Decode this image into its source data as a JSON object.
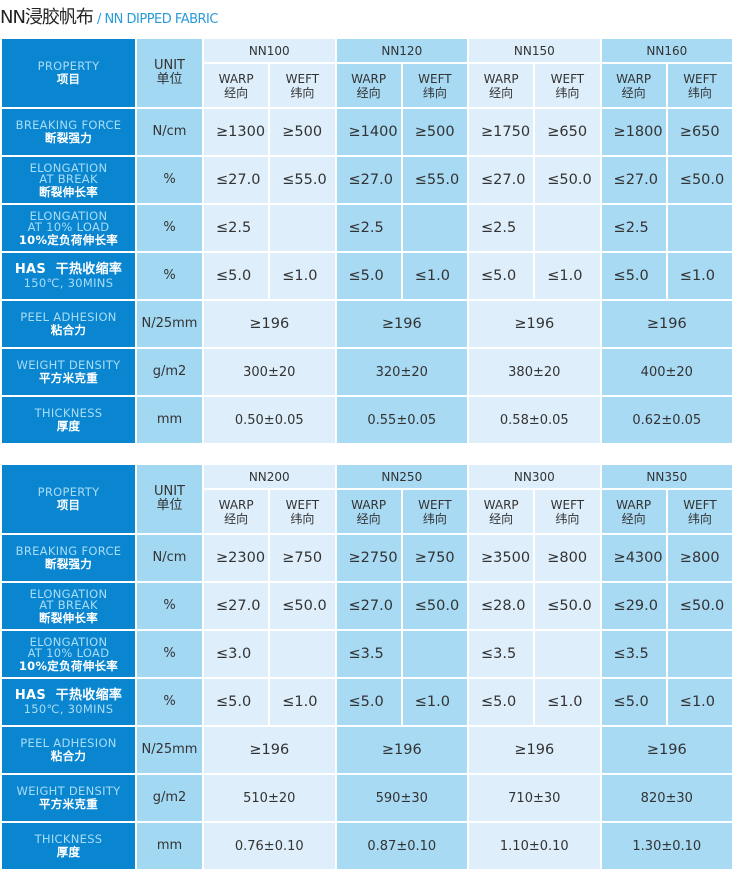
{
  "title": {
    "cn": "NN浸胶帆布",
    "en": "/ NN DIPPED FABRIC"
  },
  "header": {
    "property": "PROPERTY",
    "property_cn": "项目",
    "unit": "UNIT",
    "unit_cn": "单位",
    "warp": "WARP",
    "warp_cn": "经向",
    "weft": "WEFT",
    "weft_cn": "纬向"
  },
  "rows": [
    {
      "en": "BREAKING FORCE",
      "cn": "断裂强力",
      "unit": "N/cm"
    },
    {
      "en": "ELONGATION\nAT BREAK",
      "cn": "断裂伸长率",
      "unit": "%"
    },
    {
      "en": "ELONGATION\nAT 10% LOAD",
      "cn": "10%定负荷伸长率",
      "unit": "%"
    },
    {
      "en": "HAS  干热收缩率",
      "cn": "150℃, 30MINS",
      "unit": "%",
      "style": "has"
    },
    {
      "en": "PEEL ADHESION",
      "cn": "粘合力",
      "unit": "N/25mm"
    },
    {
      "en": "WEIGHT DENSITY",
      "cn": "平方米克重",
      "unit": "g/m2"
    },
    {
      "en": "THICKNESS",
      "cn": "厚度",
      "unit": "mm"
    }
  ],
  "tables": [
    {
      "groups": [
        {
          "name": "NN100",
          "breaking": [
            "≥1300",
            "≥500"
          ],
          "elong_break": [
            "≤27.0",
            "≤55.0"
          ],
          "elong_10": "≤2.5",
          "has": [
            "≤5.0",
            "≤1.0"
          ],
          "peel": "≥196",
          "weight": "300±20",
          "thickness": "0.50±0.05"
        },
        {
          "name": "NN120",
          "breaking": [
            "≥1400",
            "≥500"
          ],
          "elong_break": [
            "≤27.0",
            "≤55.0"
          ],
          "elong_10": "≤2.5",
          "has": [
            "≤5.0",
            "≤1.0"
          ],
          "peel": "≥196",
          "weight": "320±20",
          "thickness": "0.55±0.05"
        },
        {
          "name": "NN150",
          "breaking": [
            "≥1750",
            "≥650"
          ],
          "elong_break": [
            "≤27.0",
            "≤50.0"
          ],
          "elong_10": "≤2.5",
          "has": [
            "≤5.0",
            "≤1.0"
          ],
          "peel": "≥196",
          "weight": "380±20",
          "thickness": "0.58±0.05"
        },
        {
          "name": "NN160",
          "breaking": [
            "≥1800",
            "≥650"
          ],
          "elong_break": [
            "≤27.0",
            "≤50.0"
          ],
          "elong_10": "≤2.5",
          "has": [
            "≤5.0",
            "≤1.0"
          ],
          "peel": "≥196",
          "weight": "400±20",
          "thickness": "0.62±0.05"
        }
      ]
    },
    {
      "groups": [
        {
          "name": "NN200",
          "breaking": [
            "≥2300",
            "≥750"
          ],
          "elong_break": [
            "≤27.0",
            "≤50.0"
          ],
          "elong_10": "≤3.0",
          "has": [
            "≤5.0",
            "≤1.0"
          ],
          "peel": "≥196",
          "weight": "510±20",
          "thickness": "0.76±0.10"
        },
        {
          "name": "NN250",
          "breaking": [
            "≥2750",
            "≥750"
          ],
          "elong_break": [
            "≤27.0",
            "≤50.0"
          ],
          "elong_10": "≤3.5",
          "has": [
            "≤5.0",
            "≤1.0"
          ],
          "peel": "≥196",
          "weight": "590±30",
          "thickness": "0.87±0.10"
        },
        {
          "name": "NN300",
          "breaking": [
            "≥3500",
            "≥800"
          ],
          "elong_break": [
            "≤28.0",
            "≤50.0"
          ],
          "elong_10": "≤3.5",
          "has": [
            "≤5.0",
            "≤1.0"
          ],
          "peel": "≥196",
          "weight": "710±30",
          "thickness": "1.10±0.10"
        },
        {
          "name": "NN350",
          "breaking": [
            "≥4300",
            "≥800"
          ],
          "elong_break": [
            "≤29.0",
            "≤50.0"
          ],
          "elong_10": "≤3.5",
          "has": [
            "≤5.0",
            "≤1.0"
          ],
          "peel": "≥196",
          "weight": "820±30",
          "thickness": "1.30±0.10"
        }
      ]
    }
  ],
  "colors": {
    "property_bg": "#0a86d1",
    "unit_bg": "#a3d8f3",
    "group_light": "#deeffb",
    "group_mid": "#a8daf4"
  }
}
